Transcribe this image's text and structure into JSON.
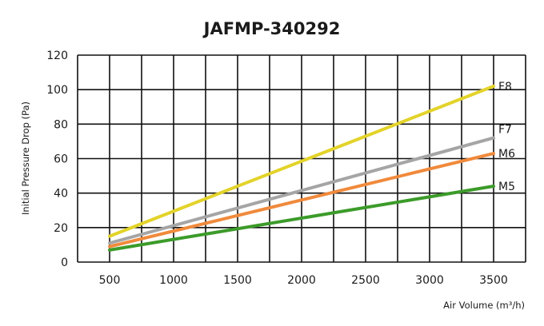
{
  "chart_data": {
    "type": "line",
    "title": "JAFMP-340292",
    "xlabel": "Air Volume (m³/h)",
    "ylabel": "Initial Pressure Drop (Pa)",
    "x": [
      500,
      3500
    ],
    "xlim": [
      250,
      3750
    ],
    "ylim": [
      0,
      120
    ],
    "xticks": [
      500,
      1000,
      1500,
      2000,
      2500,
      3000,
      3500
    ],
    "xgrid_step": 250,
    "yticks": [
      0,
      20,
      40,
      60,
      80,
      100,
      120
    ],
    "grid": true,
    "legend_position": "inline-right",
    "series": [
      {
        "name": "F8",
        "values": [
          15,
          102
        ],
        "color": "#E3D32A"
      },
      {
        "name": "F7",
        "values": [
          11,
          72
        ],
        "color": "#A5A5A5"
      },
      {
        "name": "M6",
        "values": [
          9,
          63
        ],
        "color": "#F08A3C"
      },
      {
        "name": "M5",
        "values": [
          7,
          44
        ],
        "color": "#3C9B2A"
      }
    ]
  }
}
